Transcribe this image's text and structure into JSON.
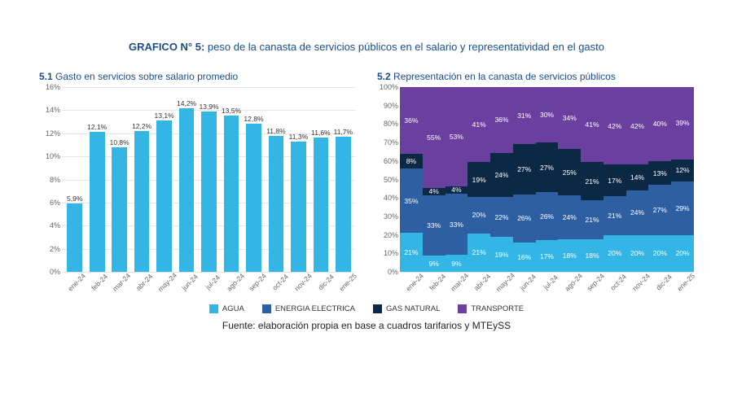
{
  "main_title_bold": "GRAFICO N° 5:",
  "main_title_rest": "peso de la canasta de servicios públicos en el salario y representatividad en el gasto",
  "title_color": "#1a4d8f",
  "categories": [
    "ene-24",
    "feb-24",
    "mar-24",
    "abr-24",
    "may-24",
    "jun-24",
    "jul-24",
    "ago-24",
    "sep-24",
    "oct-24",
    "nov-24",
    "dic-24",
    "ene-25"
  ],
  "chart51": {
    "title_bold": "5.1",
    "title_rest": "Gasto en servicios sobre salario promedio",
    "type": "bar",
    "values": [
      5.9,
      12.1,
      10.8,
      12.2,
      13.1,
      14.2,
      13.9,
      13.5,
      12.8,
      11.8,
      11.3,
      11.6,
      11.7
    ],
    "value_suffix": "%",
    "bar_color": "#33b5e6",
    "ylim": [
      0,
      16
    ],
    "ytick_step": 2,
    "ytick_suffix": "%",
    "grid_color": "#e6e6e6",
    "label_color": "#333333",
    "label_fontsize": 8.5,
    "tick_color": "#666666"
  },
  "chart52": {
    "title_bold": "5.2",
    "title_rest": "Representación en la canasta de servicios públicos",
    "type": "stacked-bar-100",
    "series": [
      {
        "name": "AGUA",
        "color": "#33b5e6",
        "values": [
          21,
          9,
          9,
          21,
          19,
          16,
          17,
          18,
          18,
          20,
          20,
          20,
          20
        ]
      },
      {
        "name": "ENERGIA ELECTRICA",
        "color": "#2e5fa3",
        "values": [
          35,
          33,
          33,
          20,
          22,
          26,
          26,
          24,
          21,
          21,
          24,
          27,
          29
        ]
      },
      {
        "name": "GAS NATURAL",
        "color": "#0b2845",
        "values": [
          8,
          4,
          4,
          19,
          24,
          27,
          27,
          25,
          21,
          17,
          14,
          13,
          12
        ]
      },
      {
        "name": "TRANSPORTE",
        "color": "#6b3fa0",
        "values": [
          36,
          55,
          53,
          41,
          36,
          31,
          30,
          34,
          41,
          42,
          42,
          40,
          39
        ]
      }
    ],
    "value_suffix": "%",
    "ylim": [
      0,
      100
    ],
    "ytick_step": 10,
    "ytick_suffix": "%",
    "grid_color": "#e6e6e6",
    "seg_label_color": "#ffffff",
    "seg_label_fontsize": 8.5,
    "tick_color": "#666666"
  },
  "legend": [
    {
      "label": "AGUA",
      "color": "#33b5e6"
    },
    {
      "label": "ENERGIA ELECTRICA",
      "color": "#2e5fa3"
    },
    {
      "label": "GAS NATURAL",
      "color": "#0b2845"
    },
    {
      "label": "TRANSPORTE",
      "color": "#6b3fa0"
    }
  ],
  "source": "Fuente: elaboración propia en base a cuadros tarifarios y MTEySS"
}
